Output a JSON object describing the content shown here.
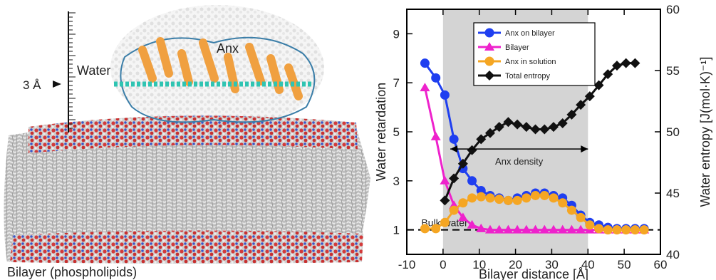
{
  "left_panel": {
    "scale_label": "3 Å",
    "water_label": "Water",
    "protein_label": "Anx",
    "bilayer_label": "Bilayer (phospholipids)"
  },
  "chart_data": {
    "type": "line",
    "xlabel": "Bilayer distance [Å]",
    "ylabel": "Water retardation",
    "y2label": "Water entropy [J(mol·K)⁻¹]",
    "xlim": [
      -10,
      60
    ],
    "ylim": [
      0,
      10
    ],
    "y2lim": [
      40,
      60
    ],
    "x_ticks": [
      -10,
      0,
      10,
      20,
      30,
      40,
      50,
      60
    ],
    "y_ticks": [
      1,
      3,
      5,
      7,
      9
    ],
    "y2_ticks": [
      40,
      45,
      50,
      55,
      60
    ],
    "legend_position": "top-right",
    "shaded_region": {
      "x": [
        0,
        40
      ],
      "color": "#d4d4d4"
    },
    "bulk_line": {
      "y": 1,
      "label": "Bulk water"
    },
    "annotation": {
      "text": "Anx density",
      "x": [
        2,
        40
      ],
      "y": 4.3
    },
    "series": [
      {
        "name": "Anx on bilayer",
        "axis": "left",
        "marker": "circle",
        "color": "#1f3ff0",
        "x": [
          -5,
          -2,
          0.5,
          3,
          5.5,
          8,
          10.5,
          13,
          15.5,
          18,
          20.5,
          23,
          25.5,
          28,
          30.5,
          33,
          35.5,
          38,
          40.5,
          43,
          45.5,
          48,
          50.5,
          53,
          55.5
        ],
        "y": [
          7.8,
          7.2,
          6.5,
          4.7,
          3.5,
          3.0,
          2.6,
          2.4,
          2.3,
          2.2,
          2.3,
          2.4,
          2.5,
          2.5,
          2.4,
          2.3,
          2.0,
          1.6,
          1.3,
          1.2,
          1.1,
          1.05,
          1.05,
          1.05,
          1.05
        ]
      },
      {
        "name": "Bilayer",
        "axis": "left",
        "marker": "triangle",
        "color": "#ee22cc",
        "x": [
          -5,
          -2,
          0.5,
          3,
          5.5,
          8,
          10.5,
          13,
          15.5,
          18,
          20.5,
          23,
          25.5,
          28,
          30.5,
          33,
          35.5,
          38,
          40.5,
          43,
          45.5,
          48,
          50.5,
          53,
          55.5
        ],
        "y": [
          6.8,
          4.8,
          3.0,
          2.0,
          1.5,
          1.2,
          1.05,
          1.0,
          1.0,
          1.0,
          1.0,
          1.0,
          1.0,
          1.0,
          1.0,
          1.0,
          1.0,
          1.0,
          1.0,
          1.0,
          1.0,
          1.0,
          1.0,
          1.0,
          1.0
        ]
      },
      {
        "name": "Anx in solution",
        "axis": "left",
        "marker": "circle",
        "color": "#f5a623",
        "x": [
          -5,
          -2,
          0.5,
          3,
          5.5,
          8,
          10.5,
          13,
          15.5,
          18,
          20.5,
          23,
          25.5,
          28,
          30.5,
          33,
          35.5,
          38,
          40.5,
          43,
          45.5,
          48,
          50.5,
          53,
          55.5
        ],
        "y": [
          1.05,
          1.05,
          1.3,
          1.8,
          2.1,
          2.3,
          2.35,
          2.3,
          2.25,
          2.2,
          2.2,
          2.3,
          2.4,
          2.4,
          2.3,
          2.1,
          1.8,
          1.5,
          1.2,
          1.05,
          1.0,
          1.0,
          1.0,
          1.0,
          1.0
        ]
      },
      {
        "name": "Total entropy",
        "axis": "right",
        "marker": "diamond",
        "color": "#111111",
        "x": [
          0.5,
          3,
          5.5,
          8,
          10.5,
          13,
          15.5,
          18,
          20.5,
          23,
          25.5,
          28,
          30.5,
          33,
          35.5,
          38,
          40.5,
          43,
          45.5,
          48,
          50.5,
          53
        ],
        "y": [
          44.4,
          46.2,
          47.4,
          48.5,
          49.4,
          49.9,
          50.4,
          50.8,
          50.6,
          50.4,
          50.2,
          50.2,
          50.4,
          50.7,
          51.4,
          52.2,
          52.9,
          53.8,
          54.7,
          55.4,
          55.6,
          55.6
        ]
      }
    ]
  }
}
